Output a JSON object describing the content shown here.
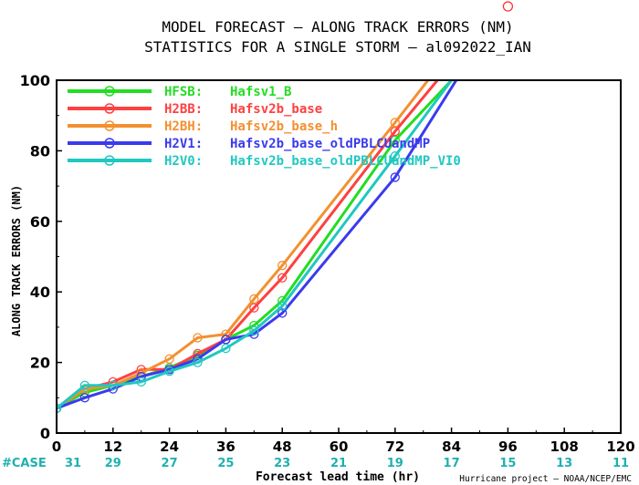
{
  "chart_data": {
    "type": "line",
    "title": "MODEL FORECAST – ALONG TRACK ERRORS (NM)",
    "subtitle": "STATISTICS FOR A SINGLE STORM – al092022_IAN",
    "xlabel": "Forecast lead time (hr)",
    "ylabel": "ALONG TRACK ERRORS (NM)",
    "xlim": [
      0,
      120
    ],
    "ylim": [
      0,
      100
    ],
    "x_ticks": [
      0,
      12,
      24,
      36,
      48,
      60,
      72,
      84,
      96,
      108,
      120
    ],
    "y_ticks": [
      0,
      20,
      40,
      60,
      80,
      100
    ],
    "grid": false,
    "legend_position": "top-left",
    "case_label": "#CASE",
    "case_counts": [
      "31",
      "29",
      "27",
      "25",
      "23",
      "21",
      "19",
      "17",
      "15",
      "13",
      "11"
    ],
    "case_color": "#20b0b0",
    "credit": "Hurricane project – NOAA/NCEP/EMC",
    "marker_96h": {
      "x": 96,
      "note_color": "#ff3030"
    },
    "series": [
      {
        "code": "HFSB:",
        "name": "Hafsv1_B",
        "color": "#22dd22",
        "x": [
          0,
          6,
          12,
          18,
          24,
          30,
          36,
          42,
          48,
          72,
          84
        ],
        "y": [
          7,
          11.5,
          13.5,
          16,
          18.5,
          22,
          26.5,
          30.5,
          37.5,
          83,
          100
        ]
      },
      {
        "code": "H2BB:",
        "name": "Hafsv2b_base",
        "color": "#ff4040",
        "x": [
          0,
          6,
          12,
          18,
          24,
          30,
          36,
          42,
          48,
          72,
          81
        ],
        "y": [
          7,
          12.5,
          14.5,
          18,
          18,
          22.5,
          26.5,
          35.5,
          44,
          85.5,
          100
        ]
      },
      {
        "code": "H2BH:",
        "name": "Hafsv2b_base_h",
        "color": "#f39030",
        "x": [
          0,
          6,
          12,
          18,
          24,
          30,
          36,
          42,
          48,
          72,
          79
        ],
        "y": [
          7,
          12.5,
          13.5,
          17,
          21,
          27,
          28,
          38,
          47.5,
          88,
          100
        ]
      },
      {
        "code": "H2V1:",
        "name": "Hafsv2b_base_oldPBLCUandMP",
        "color": "#3a3aee",
        "x": [
          0,
          6,
          12,
          18,
          24,
          30,
          36,
          42,
          48,
          72,
          85
        ],
        "y": [
          7,
          10,
          12.5,
          16,
          18,
          21,
          26.5,
          28,
          34,
          72.5,
          100
        ]
      },
      {
        "code": "H2V0:",
        "name": "Hafsv2b_base_oldPBLCUandMP_VI0",
        "color": "#20c8c0",
        "x": [
          0,
          6,
          12,
          18,
          24,
          30,
          36,
          42,
          48,
          72,
          84
        ],
        "y": [
          7,
          13.5,
          13.5,
          14.5,
          17.5,
          20,
          24,
          29,
          36,
          78.5,
          100
        ]
      }
    ]
  }
}
